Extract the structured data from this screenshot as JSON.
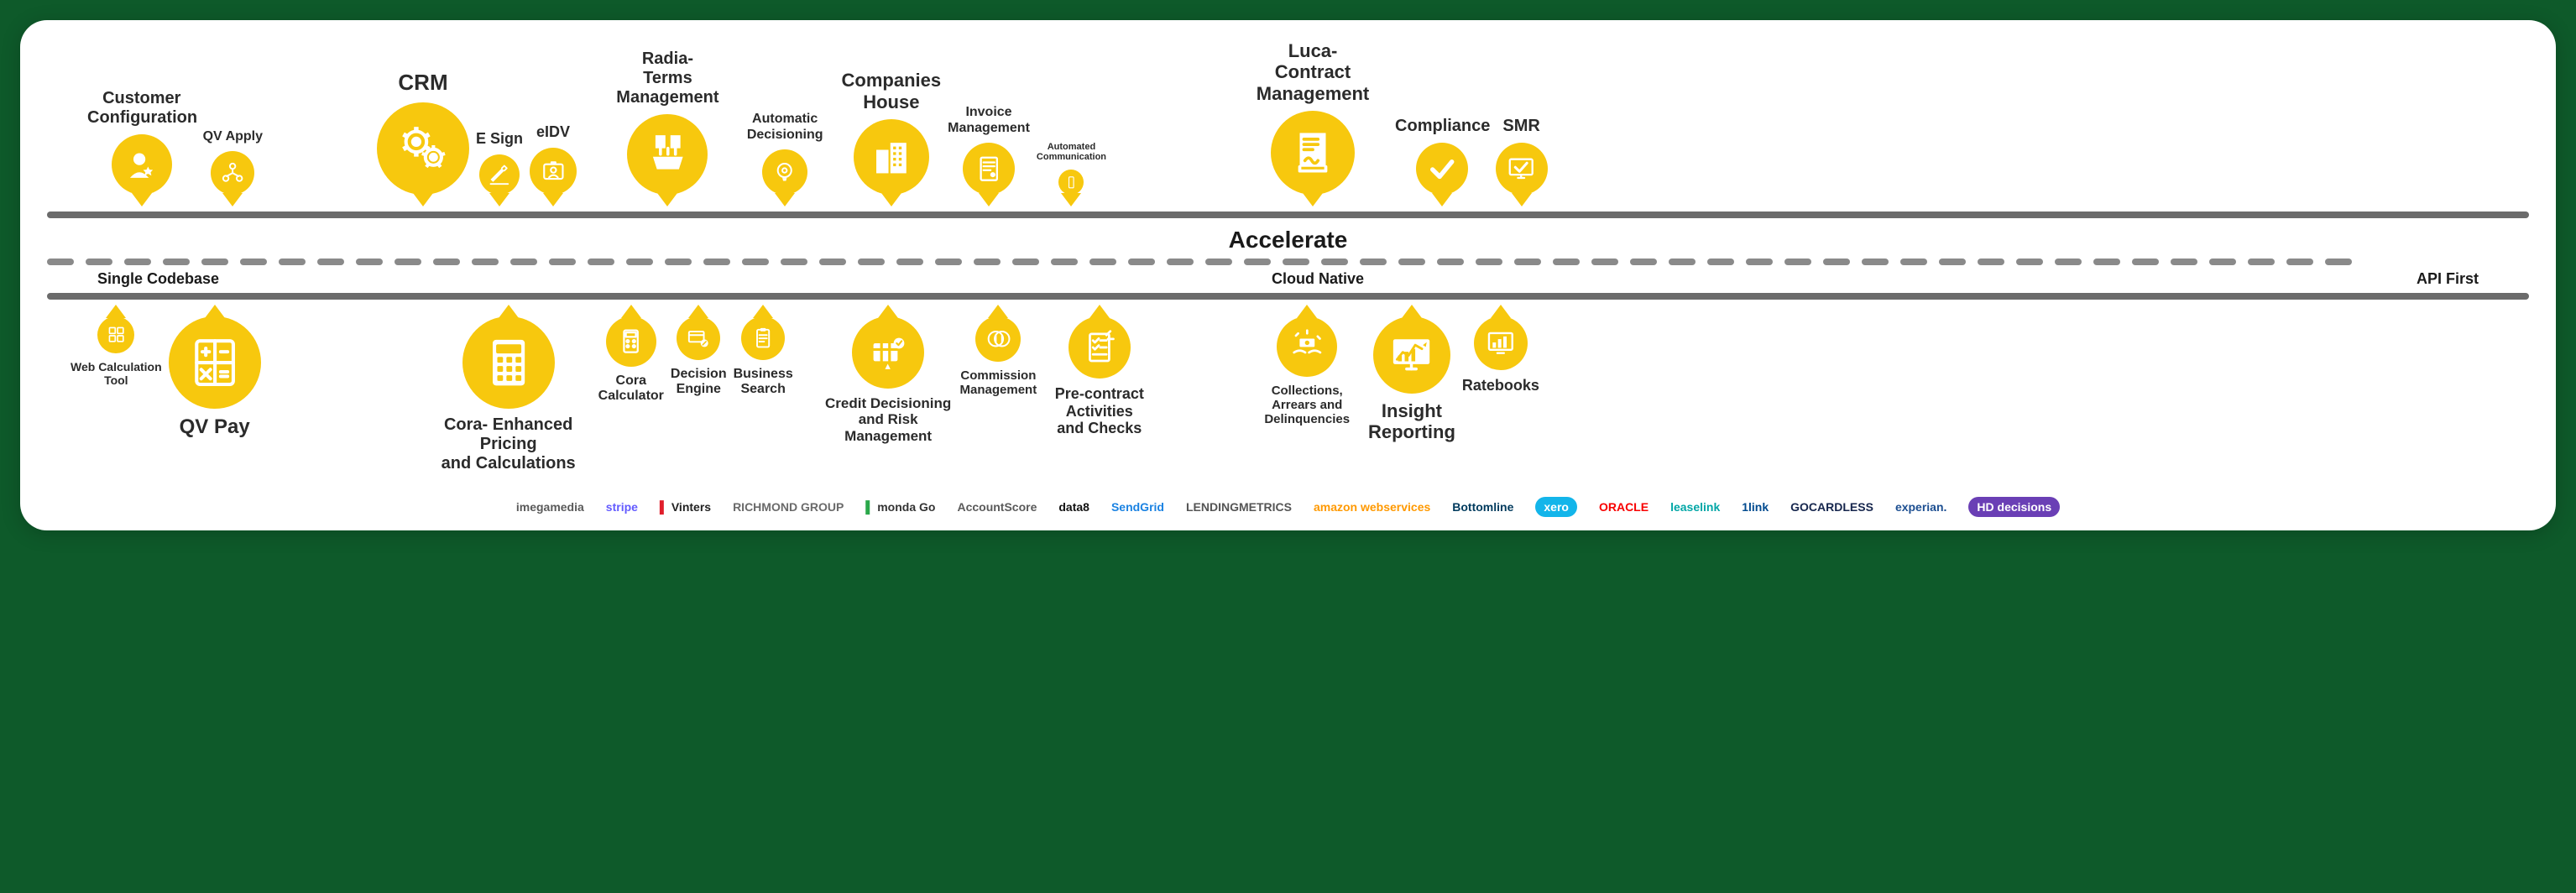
{
  "type": "infographic",
  "colors": {
    "page_bg": "#0e5a2a",
    "card_bg": "#ffffff",
    "bubble": "#f7c80e",
    "bubble_icon": "#ffffff",
    "line": "#6b6b6b",
    "dash": "#8a8a8a",
    "text": "#2b2b2b"
  },
  "title": "Accelerate",
  "mid_labels": [
    "Single Codebase",
    "Cloud Native",
    "API First"
  ],
  "top_pins": [
    {
      "label": "Customer\nConfiguration",
      "size": 72,
      "font": 20,
      "pre_gap": 40,
      "icon": "user-star"
    },
    {
      "label": "QV Apply",
      "size": 52,
      "font": 16,
      "pre_gap": 0,
      "icon": "org"
    },
    {
      "label": "CRM",
      "size": 110,
      "font": 26,
      "pre_gap": 120,
      "icon": "gears"
    },
    {
      "label": "E Sign",
      "size": 48,
      "font": 18,
      "pre_gap": 0,
      "icon": "pen"
    },
    {
      "label": "eIDV",
      "size": 56,
      "font": 18,
      "pre_gap": 0,
      "icon": "id-card"
    },
    {
      "label": "Radia-\nTerms Management",
      "size": 96,
      "font": 20,
      "pre_gap": 6,
      "icon": "docs-box"
    },
    {
      "label": "Automatic\nDecisioning",
      "size": 54,
      "font": 16,
      "pre_gap": 0,
      "icon": "bulb-gear"
    },
    {
      "label": "Companies\nHouse",
      "size": 90,
      "font": 22,
      "pre_gap": 6,
      "icon": "buildings"
    },
    {
      "label": "Invoice\nManagement",
      "size": 62,
      "font": 16,
      "pre_gap": 0,
      "icon": "invoice"
    },
    {
      "label": "Automated\nCommunication",
      "size": 30,
      "font": 11,
      "pre_gap": 0,
      "icon": "phone"
    },
    {
      "label": "Luca-\nContract Management",
      "size": 100,
      "font": 22,
      "pre_gap": 140,
      "icon": "contract"
    },
    {
      "label": "Compliance",
      "size": 62,
      "font": 20,
      "pre_gap": 0,
      "icon": "check"
    },
    {
      "label": "SMR",
      "size": 62,
      "font": 20,
      "pre_gap": 0,
      "icon": "monitor-check"
    }
  ],
  "bottom_pins": [
    {
      "label": "Web Calculation\nTool",
      "size": 44,
      "font": 14,
      "pre_gap": 20,
      "icon": "grid4"
    },
    {
      "label": "QV Pay",
      "size": 110,
      "font": 24,
      "pre_gap": 0,
      "icon": "calculator-big"
    },
    {
      "label": "Cora- Enhanced Pricing\nand Calculations",
      "size": 110,
      "font": 20,
      "pre_gap": 180,
      "icon": "calculator-buttons"
    },
    {
      "label": "Cora\nCalculator",
      "size": 60,
      "font": 16,
      "pre_gap": 0,
      "icon": "calc-small"
    },
    {
      "label": "Decision\nEngine",
      "size": 52,
      "font": 16,
      "pre_gap": 0,
      "icon": "card-pencil"
    },
    {
      "label": "Business\nSearch",
      "size": 52,
      "font": 16,
      "pre_gap": 0,
      "icon": "clipboard"
    },
    {
      "label": "Credit Decisioning and Risk\nManagement",
      "size": 86,
      "font": 17,
      "pre_gap": 20,
      "icon": "risk-grid"
    },
    {
      "label": "Commission\nManagement",
      "size": 54,
      "font": 15,
      "pre_gap": 0,
      "icon": "coins"
    },
    {
      "label": "Pre-contract Activities\nand Checks",
      "size": 74,
      "font": 18,
      "pre_gap": 0,
      "icon": "checklist"
    },
    {
      "label": "Collections, Arrears and\nDelinquencies",
      "size": 72,
      "font": 15,
      "pre_gap": 100,
      "icon": "money-hands"
    },
    {
      "label": "Insight\nReporting",
      "size": 92,
      "font": 22,
      "pre_gap": 0,
      "icon": "chart-monitor"
    },
    {
      "label": "Ratebooks",
      "size": 64,
      "font": 18,
      "pre_gap": 0,
      "icon": "bars-monitor"
    }
  ],
  "logos": [
    {
      "text": "imegamedia",
      "color": "#5a5a5a"
    },
    {
      "text": "stripe",
      "color": "#635bff"
    },
    {
      "text": "Vinters",
      "color": "#222222",
      "accent": "#e01e2b"
    },
    {
      "text": "RICHMOND GROUP",
      "color": "#6a6a6a"
    },
    {
      "text": "monda Go",
      "color": "#333333",
      "accent": "#2aa84a"
    },
    {
      "text": "AccountScore",
      "color": "#5a5a5a"
    },
    {
      "text": "data8",
      "color": "#111111"
    },
    {
      "text": "SendGrid",
      "color": "#1a82e2"
    },
    {
      "text": "LENDINGMETRICS",
      "color": "#555555"
    },
    {
      "text": "amazon webservices",
      "color": "#ff9900"
    },
    {
      "text": "Bottomline",
      "color": "#003a5d"
    },
    {
      "text": "xero",
      "color": "#ffffff",
      "bg": "#13b5ea"
    },
    {
      "text": "ORACLE",
      "color": "#f80000"
    },
    {
      "text": "leaselink",
      "color": "#00a6a6"
    },
    {
      "text": "1link",
      "color": "#004a8f"
    },
    {
      "text": "GOCARDLESS",
      "color": "#16264d"
    },
    {
      "text": "experian.",
      "color": "#1d4f91"
    },
    {
      "text": "HD decisions",
      "color": "#ffffff",
      "bg": "#6a3fb5"
    }
  ]
}
